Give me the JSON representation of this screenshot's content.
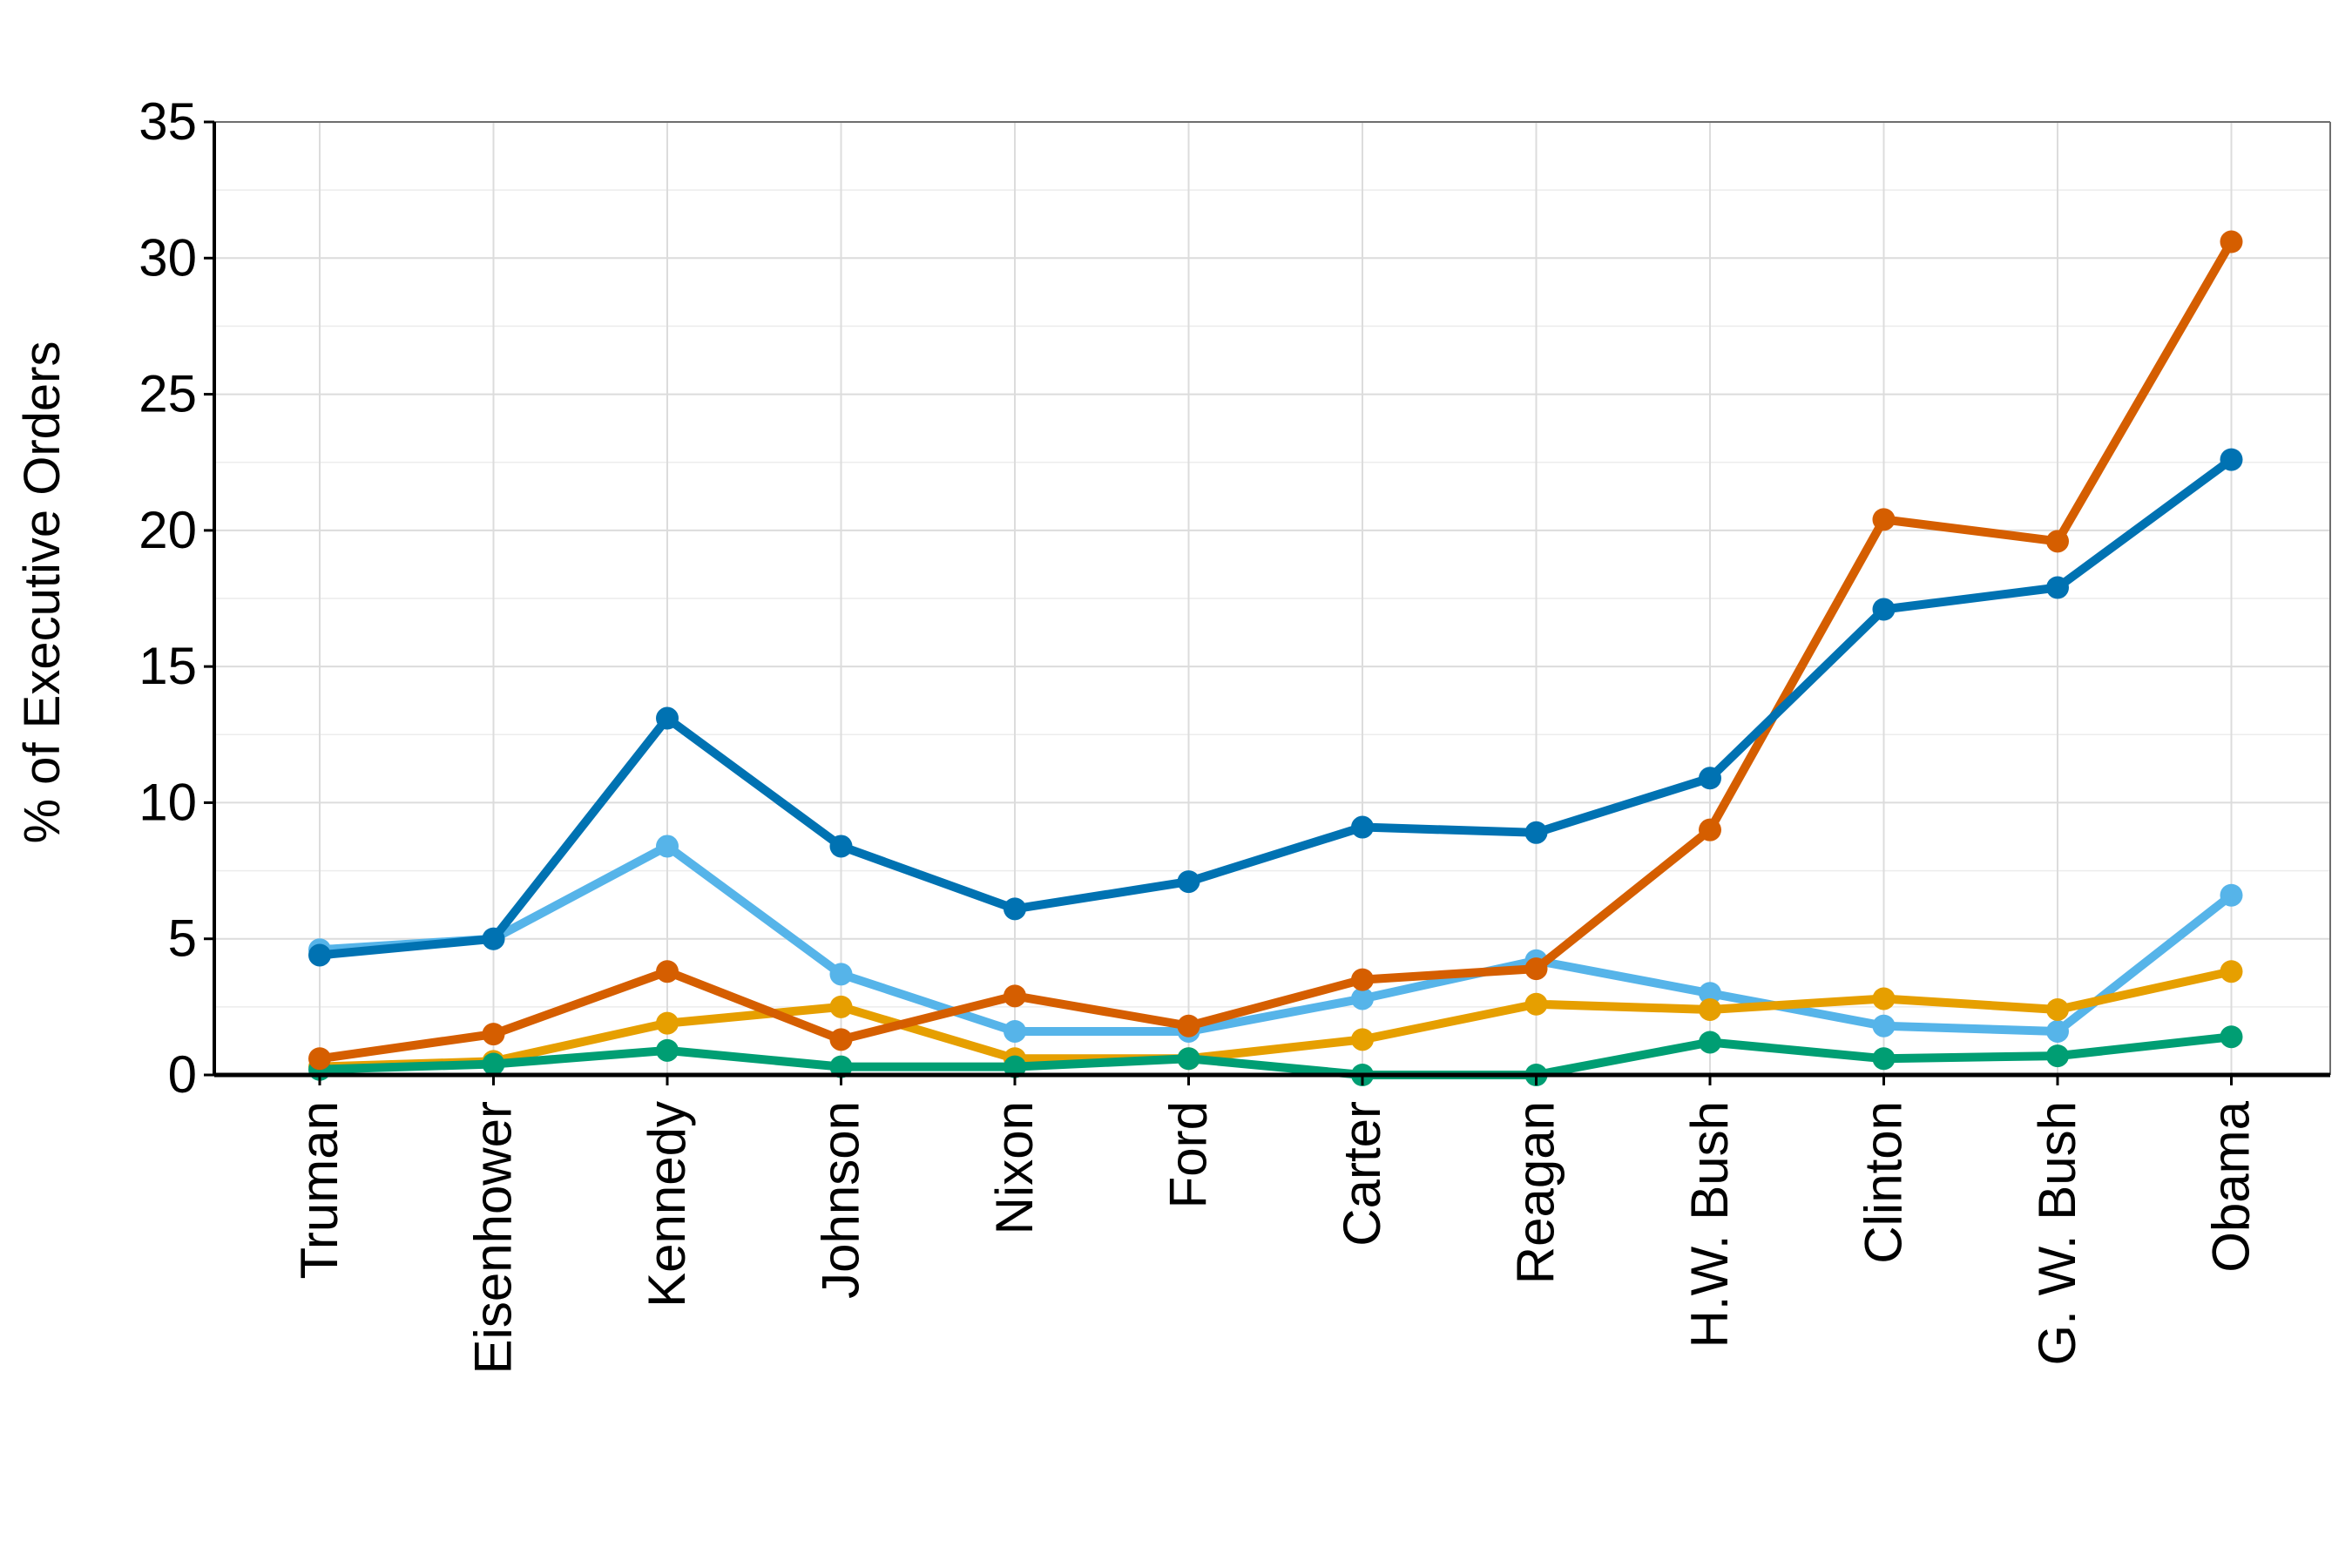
{
  "chart_data": {
    "type": "line",
    "title": "",
    "xlabel": "",
    "ylabel": "% of Executive Orders",
    "ylim": [
      0,
      35
    ],
    "yticks": [
      "0",
      "5",
      "10",
      "15",
      "20",
      "25",
      "30",
      "35"
    ],
    "grid": true,
    "legend": "none",
    "categories": [
      "Truman",
      "Eisenhower",
      "Kennedy",
      "Johnson",
      "Nixon",
      "Ford",
      "Carter",
      "Reagan",
      "H.W. Bush",
      "Clinton",
      "G. W. Bush",
      "Obama"
    ],
    "series": [
      {
        "color": "#56B4E9",
        "values": [
          4.6,
          5.0,
          8.4,
          3.7,
          1.6,
          1.6,
          2.8,
          4.2,
          3.0,
          1.8,
          1.6,
          6.6
        ]
      },
      {
        "color": "#E69F00",
        "values": [
          0.3,
          0.5,
          1.9,
          2.5,
          0.6,
          0.6,
          1.3,
          2.6,
          2.4,
          2.8,
          2.4,
          3.8
        ]
      },
      {
        "color": "#009E73",
        "values": [
          0.2,
          0.4,
          0.9,
          0.3,
          0.3,
          0.6,
          0.0,
          0.0,
          1.2,
          0.6,
          0.7,
          1.4
        ]
      },
      {
        "color": "#D55E00",
        "values": [
          0.6,
          1.5,
          3.8,
          1.3,
          2.9,
          1.8,
          3.5,
          3.9,
          9.0,
          20.4,
          19.6,
          30.6
        ]
      },
      {
        "color": "#0072B2",
        "values": [
          4.4,
          5.0,
          13.1,
          8.4,
          6.1,
          7.1,
          9.1,
          8.9,
          10.9,
          17.1,
          17.9,
          22.6
        ]
      }
    ]
  }
}
